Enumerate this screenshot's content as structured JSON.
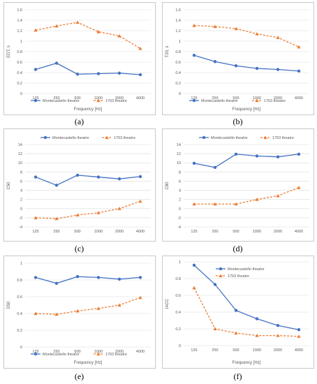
{
  "colors": {
    "montecastello": "#4472C4",
    "theatre1763": "#ED7D31",
    "grid": "#d9d9d9",
    "axis_text": "#595959"
  },
  "legend": {
    "montecastello": "Montecastello theatre",
    "theatre1763": "1763 theatre"
  },
  "chart_data": [
    {
      "id": "a",
      "caption": "(a)",
      "type": "line",
      "ylabel": "EDT, s",
      "xlabel": "Frequency [Hz]",
      "categories": [
        "125",
        "250",
        "500",
        "1000",
        "2000",
        "4000"
      ],
      "ylim": [
        0,
        1.6
      ],
      "yticks": [
        "0",
        "0.2",
        "0.4",
        "0.6",
        "0.8",
        "1",
        "1.2",
        "1.4",
        "1.6"
      ],
      "grid": true,
      "legend_position": "bottom",
      "series": [
        {
          "name": "Montecastello theatre",
          "values": [
            0.46,
            0.58,
            0.37,
            0.38,
            0.39,
            0.36
          ]
        },
        {
          "name": "1763 theatre",
          "values": [
            1.21,
            1.29,
            1.36,
            1.18,
            1.1,
            0.86
          ]
        }
      ]
    },
    {
      "id": "b",
      "caption": "(b)",
      "type": "line",
      "ylabel": "T20, s",
      "xlabel": "Frequency [Hz]",
      "categories": [
        "125",
        "250",
        "500",
        "1000",
        "2000",
        "4000"
      ],
      "ylim": [
        0,
        1.6
      ],
      "yticks": [
        "0",
        "0.2",
        "0.4",
        "0.6",
        "0.8",
        "1",
        "1.2",
        "1.4",
        "1.6"
      ],
      "grid": true,
      "legend_position": "bottom",
      "series": [
        {
          "name": "Montecastello theatre",
          "values": [
            0.73,
            0.61,
            0.53,
            0.48,
            0.46,
            0.43
          ]
        },
        {
          "name": "1763 theatre",
          "values": [
            1.3,
            1.28,
            1.24,
            1.14,
            1.07,
            0.89
          ]
        }
      ]
    },
    {
      "id": "c",
      "caption": "(c)",
      "type": "line",
      "ylabel": "C50",
      "xlabel": "",
      "categories": [
        "125",
        "250",
        "500",
        "1000",
        "2000",
        "4000"
      ],
      "ylim": [
        -4,
        14
      ],
      "yticks": [
        "-4",
        "-2",
        "0",
        "2",
        "4",
        "6",
        "8",
        "10",
        "12",
        "14"
      ],
      "grid": true,
      "legend_position": "top",
      "series": [
        {
          "name": "Montecastello theatre",
          "values": [
            6.9,
            5.1,
            7.3,
            6.9,
            6.5,
            7.0
          ]
        },
        {
          "name": "1763 theatre",
          "values": [
            -2.0,
            -2.2,
            -1.4,
            -0.9,
            0.0,
            1.6
          ]
        }
      ]
    },
    {
      "id": "d",
      "caption": "(d)",
      "type": "line",
      "ylabel": "C80",
      "xlabel": "",
      "categories": [
        "125",
        "250",
        "500",
        "1000",
        "2000",
        "4000"
      ],
      "ylim": [
        -4,
        14
      ],
      "yticks": [
        "-4",
        "-2",
        "0",
        "2",
        "4",
        "6",
        "8",
        "10",
        "12",
        "14"
      ],
      "grid": true,
      "legend_position": "top",
      "series": [
        {
          "name": "Montecastello theatre",
          "values": [
            9.9,
            9.0,
            11.9,
            11.5,
            11.3,
            11.9
          ]
        },
        {
          "name": "1763 theatre",
          "values": [
            1.0,
            1.0,
            1.0,
            2.0,
            2.8,
            4.6
          ]
        }
      ]
    },
    {
      "id": "e",
      "caption": "(e)",
      "type": "line",
      "ylabel": "D50",
      "xlabel": "Frequency [Hz]",
      "categories": [
        "125",
        "250",
        "500",
        "1000",
        "2000",
        "4000"
      ],
      "ylim": [
        0,
        1
      ],
      "yticks": [
        "0",
        "0.2",
        "0.4",
        "0.6",
        "0.8",
        "1"
      ],
      "grid": true,
      "legend_position": "bottom",
      "series": [
        {
          "name": "Montecastello theatre",
          "values": [
            0.83,
            0.76,
            0.84,
            0.83,
            0.81,
            0.83
          ]
        },
        {
          "name": "1763 theatre",
          "values": [
            0.4,
            0.39,
            0.43,
            0.46,
            0.5,
            0.59
          ]
        }
      ]
    },
    {
      "id": "f",
      "caption": "(f)",
      "type": "line",
      "ylabel": "IACC",
      "xlabel": "Frequency [Hz]",
      "categories": [
        "125",
        "250",
        "500",
        "1000",
        "2000",
        "4000"
      ],
      "ylim": [
        0,
        1
      ],
      "yticks": [
        "0",
        "0.2",
        "0.4",
        "0.6",
        "0.8",
        "1"
      ],
      "grid": true,
      "legend_position": "top-right",
      "series": [
        {
          "name": "Montecastello theatre",
          "values": [
            0.96,
            0.73,
            0.42,
            0.32,
            0.24,
            0.19
          ]
        },
        {
          "name": "1763 theatre",
          "values": [
            0.69,
            0.2,
            0.15,
            0.12,
            0.12,
            0.11
          ]
        }
      ]
    }
  ]
}
